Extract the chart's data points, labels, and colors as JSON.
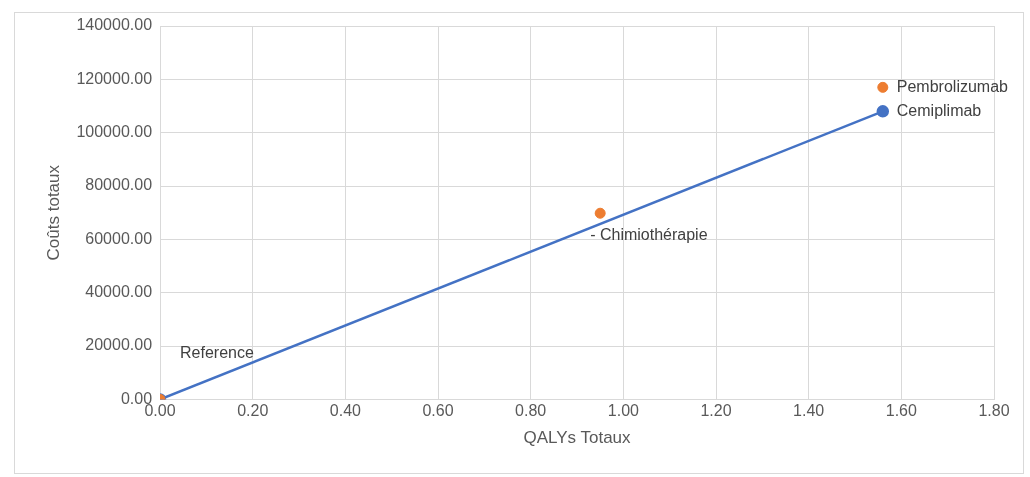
{
  "chart_data": {
    "type": "scatter",
    "xlabel": "QALYs Totaux",
    "ylabel": "Coûts totaux",
    "series": [
      {
        "type": "line",
        "color": "#4472c4",
        "x": [
          0,
          1.56
        ],
        "values": [
          0,
          108000
        ],
        "marker": "circle"
      },
      {
        "color": "#ed7d31",
        "x": [
          0,
          0.95,
          1.56
        ],
        "values": [
          0,
          69800,
          117000
        ],
        "marker": "circle"
      }
    ],
    "annotations": [
      {
        "text": "Reference",
        "x": 0,
        "y": 0
      },
      {
        "text": "- Chimiothérapie",
        "x": 0.95,
        "y": 69800
      },
      {
        "text": "Pembrolizumab",
        "x": 1.56,
        "y": 117000
      },
      {
        "text": "Cemiplimab",
        "x": 1.56,
        "y": 108000
      }
    ],
    "xlim": [
      0,
      1.8
    ],
    "xticks": [
      {
        "value": 0,
        "label": "0.00"
      },
      {
        "value": 0.2,
        "label": "0.20"
      },
      {
        "value": 0.4,
        "label": "0.40"
      },
      {
        "value": 0.6,
        "label": "0.60"
      },
      {
        "value": 0.8,
        "label": "0.80"
      },
      {
        "value": 1,
        "label": "1.00"
      },
      {
        "value": 1.2,
        "label": "1.20"
      },
      {
        "value": 1.4,
        "label": "1.40"
      },
      {
        "value": 1.6,
        "label": "1.60"
      },
      {
        "value": 1.8,
        "label": "1.80"
      }
    ],
    "ylim": [
      0,
      140000
    ],
    "yticks": [
      {
        "value": 0,
        "label": "0.00"
      },
      {
        "value": 20000,
        "label": "20000.00"
      },
      {
        "value": 40000,
        "label": "40000.00"
      },
      {
        "value": 60000,
        "label": "60000.00"
      },
      {
        "value": 80000,
        "label": "80000.00"
      },
      {
        "value": 100000,
        "label": "100000.00"
      },
      {
        "value": 120000,
        "label": "120000.00"
      },
      {
        "value": 140000,
        "label": "140000.00"
      }
    ],
    "grid": true,
    "legend": false
  }
}
